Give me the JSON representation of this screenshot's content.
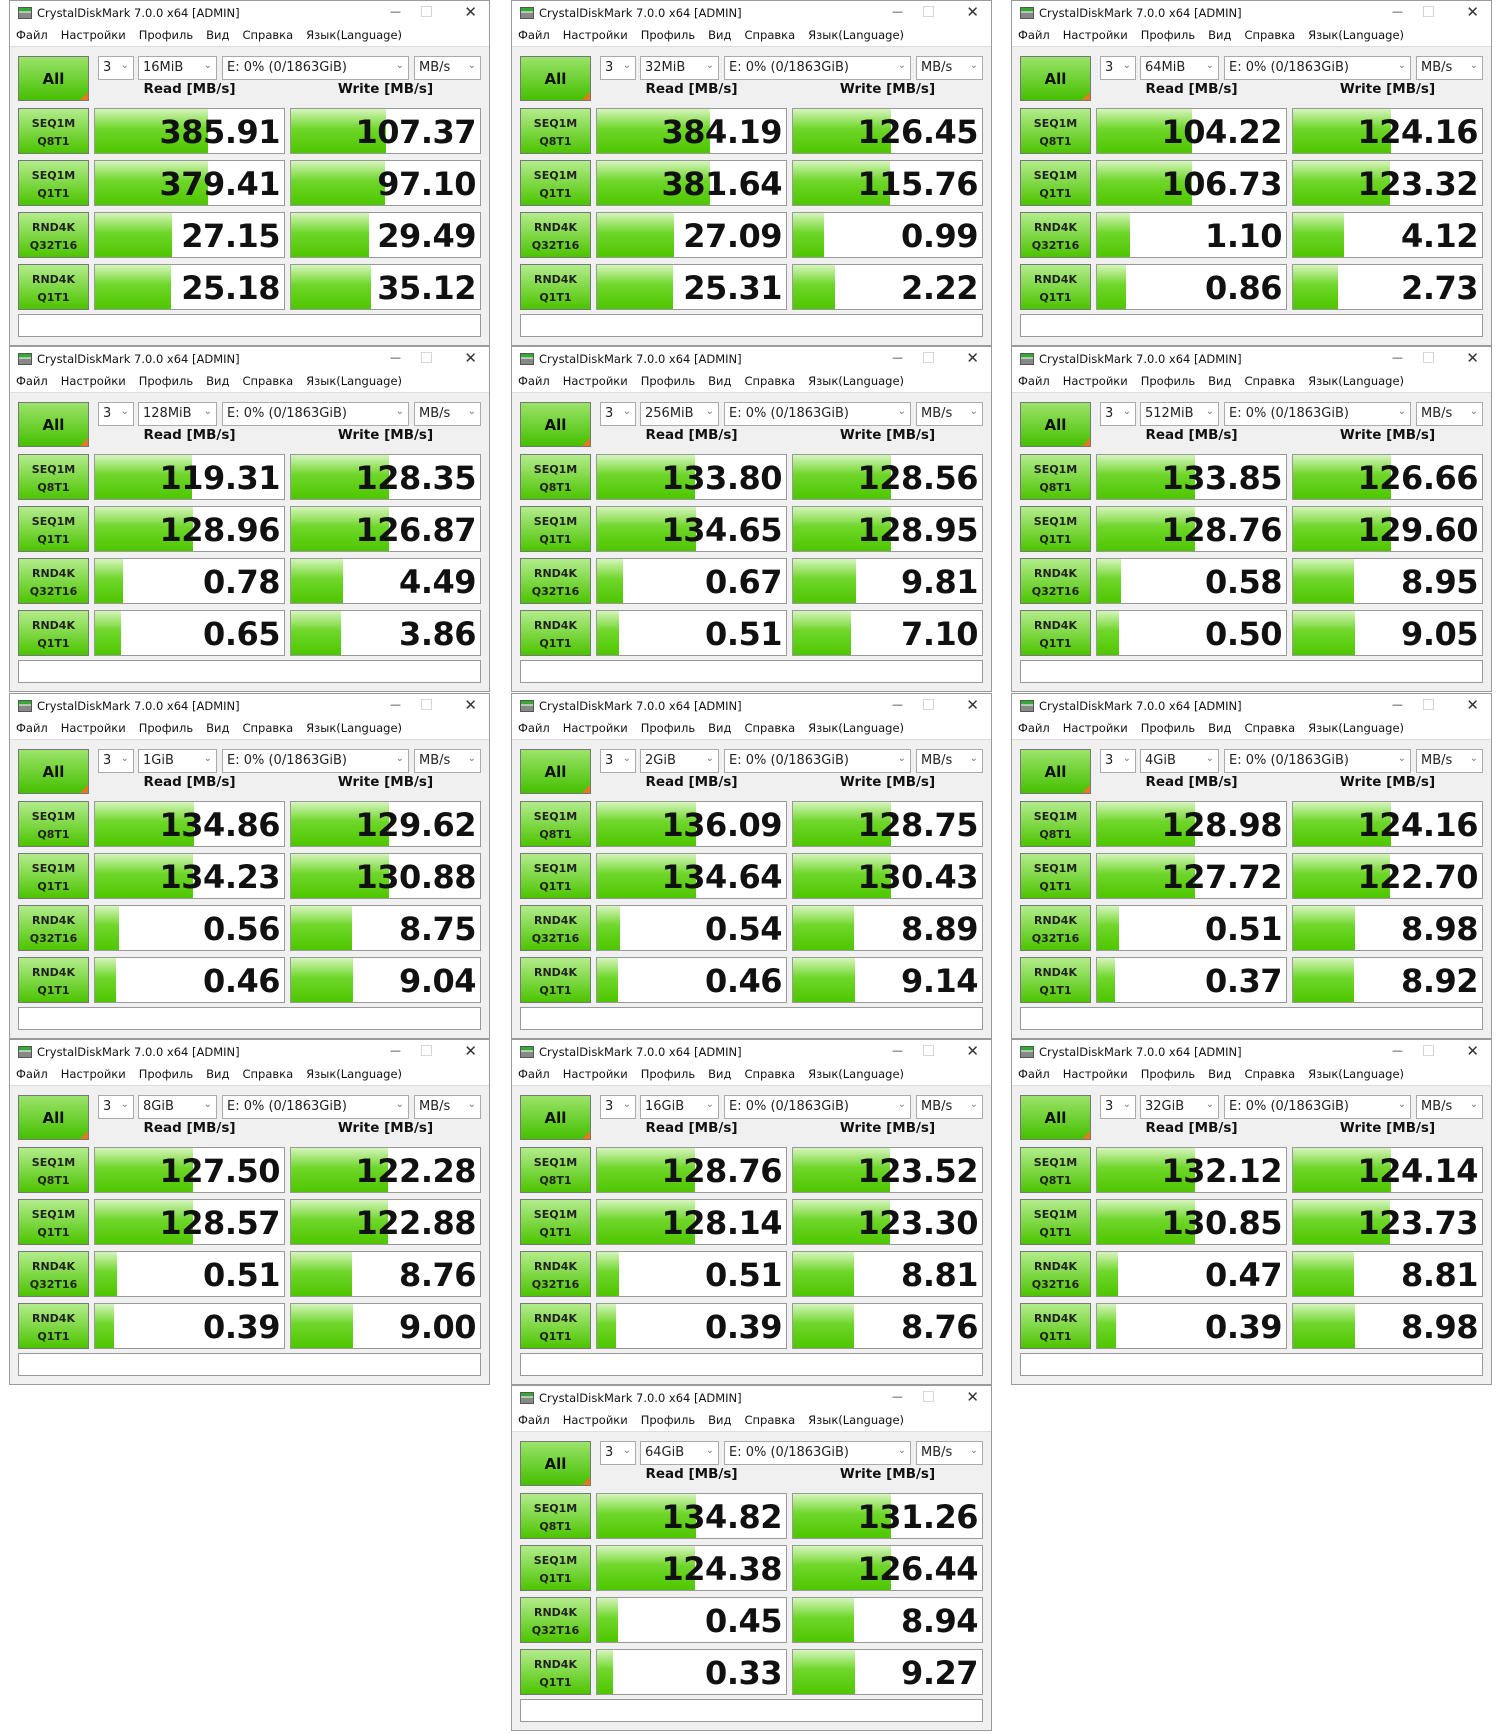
{
  "app_title": "CrystalDiskMark 7.0.0 x64 [ADMIN]",
  "menu": [
    "Файл",
    "Настройки",
    "Профиль",
    "Вид",
    "Справка",
    "Язык(Language)"
  ],
  "all_label": "All",
  "count": "3",
  "drive": "E: 0% (0/1863GiB)",
  "unit": "MB/s",
  "read_header": "Read [MB/s]",
  "write_header": "Write [MB/s]",
  "tests": [
    [
      "SEQ1M",
      "Q8T1"
    ],
    [
      "SEQ1M",
      "Q1T1"
    ],
    [
      "RND4K",
      "Q32T16"
    ],
    [
      "RND4K",
      "Q1T1"
    ]
  ],
  "colors": {
    "bar": "#4ec600",
    "accent": "#e87722"
  },
  "runs": [
    {
      "size": "16MiB",
      "read": [
        "385.91",
        "379.41",
        "27.15",
        "25.18"
      ],
      "write": [
        "107.37",
        "97.10",
        "29.49",
        "35.12"
      ]
    },
    {
      "size": "32MiB",
      "read": [
        "384.19",
        "381.64",
        "27.09",
        "25.31"
      ],
      "write": [
        "126.45",
        "115.76",
        "0.99",
        "2.22"
      ]
    },
    {
      "size": "64MiB",
      "read": [
        "104.22",
        "106.73",
        "1.10",
        "0.86"
      ],
      "write": [
        "124.16",
        "123.32",
        "4.12",
        "2.73"
      ]
    },
    {
      "size": "128MiB",
      "read": [
        "119.31",
        "128.96",
        "0.78",
        "0.65"
      ],
      "write": [
        "128.35",
        "126.87",
        "4.49",
        "3.86"
      ]
    },
    {
      "size": "256MiB",
      "read": [
        "133.80",
        "134.65",
        "0.67",
        "0.51"
      ],
      "write": [
        "128.56",
        "128.95",
        "9.81",
        "7.10"
      ]
    },
    {
      "size": "512MiB",
      "read": [
        "133.85",
        "128.76",
        "0.58",
        "0.50"
      ],
      "write": [
        "126.66",
        "129.60",
        "8.95",
        "9.05"
      ]
    },
    {
      "size": "1GiB",
      "read": [
        "134.86",
        "134.23",
        "0.56",
        "0.46"
      ],
      "write": [
        "129.62",
        "130.88",
        "8.75",
        "9.04"
      ]
    },
    {
      "size": "2GiB",
      "read": [
        "136.09",
        "134.64",
        "0.54",
        "0.46"
      ],
      "write": [
        "128.75",
        "130.43",
        "8.89",
        "9.14"
      ]
    },
    {
      "size": "4GiB",
      "read": [
        "128.98",
        "127.72",
        "0.51",
        "0.37"
      ],
      "write": [
        "124.16",
        "122.70",
        "8.98",
        "8.92"
      ]
    },
    {
      "size": "8GiB",
      "read": [
        "127.50",
        "128.57",
        "0.51",
        "0.39"
      ],
      "write": [
        "122.28",
        "122.88",
        "8.76",
        "9.00"
      ]
    },
    {
      "size": "16GiB",
      "read": [
        "128.76",
        "128.14",
        "0.51",
        "0.39"
      ],
      "write": [
        "123.52",
        "123.30",
        "8.81",
        "8.76"
      ]
    },
    {
      "size": "32GiB",
      "read": [
        "132.12",
        "130.85",
        "0.47",
        "0.39"
      ],
      "write": [
        "124.14",
        "123.73",
        "8.81",
        "8.98"
      ]
    },
    {
      "size": "64GiB",
      "read": [
        "134.82",
        "124.38",
        "0.45",
        "0.33"
      ],
      "write": [
        "131.26",
        "126.44",
        "8.94",
        "9.27"
      ]
    }
  ]
}
